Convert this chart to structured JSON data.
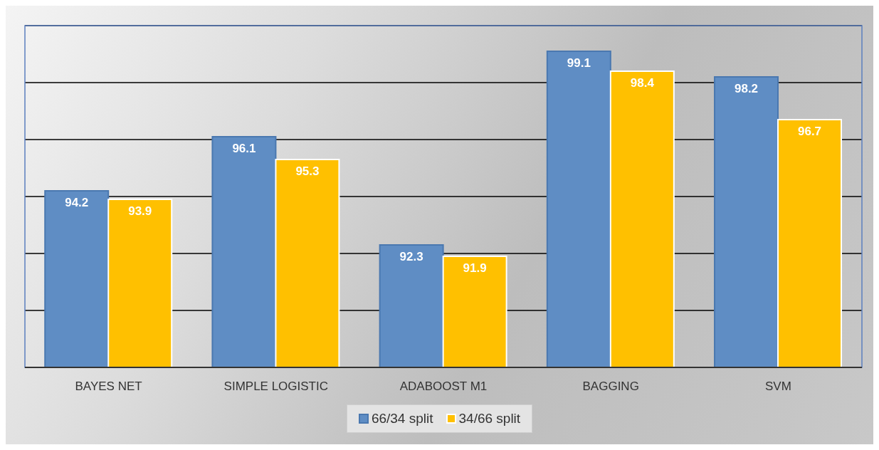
{
  "chart_data": {
    "type": "bar",
    "categories": [
      "BAYES NET",
      "SIMPLE LOGISTIC",
      "ADABOOST M1",
      "BAGGING",
      "SVM"
    ],
    "series": [
      {
        "name": "66/34 split",
        "color": "#5f8dc4",
        "values": [
          94.2,
          96.1,
          92.3,
          99.1,
          98.2
        ]
      },
      {
        "name": "34/66 split",
        "color": "#ffc000",
        "values": [
          93.9,
          95.3,
          91.9,
          98.4,
          96.7
        ]
      }
    ],
    "ylim": [
      88,
      100
    ],
    "yticks": [
      {
        "value": 88,
        "label": null
      },
      {
        "value": 90,
        "label": null
      },
      {
        "value": 92,
        "label": null
      },
      {
        "value": 94,
        "label": null
      },
      {
        "value": 96,
        "label": null
      },
      {
        "value": 98,
        "label": null
      },
      {
        "value": 100,
        "label": null
      }
    ],
    "tick_labels": "x",
    "grid": "y",
    "legend": "bottom",
    "data_labels": true
  }
}
